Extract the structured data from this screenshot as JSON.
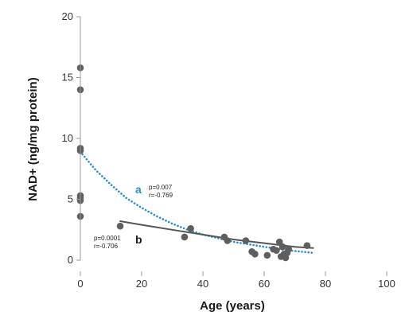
{
  "chart_data": {
    "type": "scatter",
    "xlabel": "Age (years)",
    "ylabel": "NAD+ (ng/mg protein)",
    "xlim": [
      0,
      100
    ],
    "ylim": [
      0,
      20
    ],
    "x_ticks": [
      "0",
      "20",
      "40",
      "60",
      "80",
      "100"
    ],
    "y_ticks": [
      "0",
      "5",
      "10",
      "15",
      "20"
    ],
    "grid": false,
    "points": [
      {
        "x": 0,
        "y": 15.8
      },
      {
        "x": 0,
        "y": 14.0
      },
      {
        "x": 0,
        "y": 9.2
      },
      {
        "x": 0,
        "y": 9.0
      },
      {
        "x": 0,
        "y": 5.3
      },
      {
        "x": 0,
        "y": 5.1
      },
      {
        "x": 0,
        "y": 4.9
      },
      {
        "x": 0,
        "y": 3.6
      },
      {
        "x": 13,
        "y": 2.8
      },
      {
        "x": 34,
        "y": 1.9
      },
      {
        "x": 36,
        "y": 2.6
      },
      {
        "x": 47,
        "y": 1.9
      },
      {
        "x": 48,
        "y": 1.6
      },
      {
        "x": 54,
        "y": 1.6
      },
      {
        "x": 56,
        "y": 0.7
      },
      {
        "x": 57,
        "y": 0.5
      },
      {
        "x": 61,
        "y": 0.4
      },
      {
        "x": 63,
        "y": 0.9
      },
      {
        "x": 64,
        "y": 0.8
      },
      {
        "x": 65,
        "y": 1.5
      },
      {
        "x": 65.5,
        "y": 0.3
      },
      {
        "x": 66,
        "y": 1.1
      },
      {
        "x": 66.5,
        "y": 0.5
      },
      {
        "x": 67,
        "y": 0.2
      },
      {
        "x": 67.5,
        "y": 0.6
      },
      {
        "x": 68,
        "y": 0.9
      },
      {
        "x": 74,
        "y": 1.2
      }
    ],
    "curves": [
      {
        "label": "a",
        "style": "dotted",
        "color": "#2b8fcf",
        "stats": [
          "p=0.007",
          "r=-0.769"
        ],
        "x": [
          0,
          5,
          10,
          15,
          20,
          25,
          30,
          35,
          40,
          45,
          50,
          55,
          60,
          65,
          70,
          76
        ],
        "y": [
          8.9,
          7.4,
          6.2,
          5.1,
          4.3,
          3.6,
          3.0,
          2.5,
          2.1,
          1.8,
          1.5,
          1.3,
          1.1,
          0.9,
          0.75,
          0.6
        ]
      },
      {
        "label": "b",
        "style": "solid",
        "color": "#555555",
        "stats": [
          "p=0.0001",
          "r=-0.706"
        ],
        "x": [
          13,
          20,
          30,
          40,
          50,
          60,
          70,
          76
        ],
        "y": [
          3.2,
          2.9,
          2.5,
          2.1,
          1.7,
          1.4,
          1.1,
          1.0
        ]
      }
    ],
    "point_color": "#5f5f5f"
  }
}
